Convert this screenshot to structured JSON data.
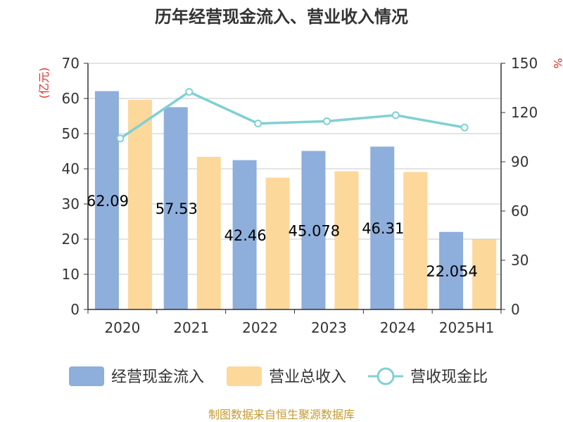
{
  "chart_data": {
    "type": "bar",
    "title": "历年经营现金流入、营业收入情况",
    "categories": [
      "2020",
      "2021",
      "2022",
      "2023",
      "2024",
      "2025H1"
    ],
    "y_left": {
      "label": "(亿元)",
      "ticks": [
        0,
        10,
        20,
        30,
        40,
        50,
        60,
        70
      ],
      "ylim": [
        0,
        70
      ]
    },
    "y_right": {
      "label": "%",
      "ticks": [
        0,
        30,
        60,
        90,
        120,
        150
      ],
      "ylim": [
        0,
        150
      ]
    },
    "series": [
      {
        "name": "经营现金流入",
        "type": "bar",
        "axis": "left",
        "color": "#8eaedc",
        "values": [
          62.09,
          57.53,
          42.46,
          45.078,
          46.31,
          22.054
        ],
        "data_labels": [
          "62.09",
          "57.53",
          "42.46",
          "45.078",
          "46.31",
          "22.054"
        ]
      },
      {
        "name": "营业总收入",
        "type": "bar",
        "axis": "left",
        "color": "#fdd89b",
        "values": [
          59.6,
          43.4,
          37.5,
          39.3,
          39.1,
          19.9
        ]
      },
      {
        "name": "营收现金比",
        "type": "line",
        "axis": "right",
        "color": "#80d0d4",
        "values": [
          104.2,
          132.6,
          113.3,
          114.7,
          118.4,
          110.9
        ]
      }
    ],
    "grid": true,
    "legend_position": "bottom"
  },
  "footer": "制图数据来自恒生聚源数据库"
}
